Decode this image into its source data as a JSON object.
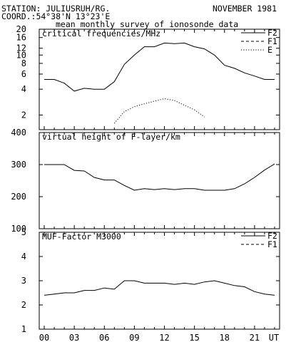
{
  "header": {
    "station": "STATION: JULIUSRUH/RG.",
    "month": "NOVEMBER 1981",
    "coords": "COORD.:54°38'N 13°23'E",
    "subtitle": "mean monthly survey of ionosonde data"
  },
  "chart_data": [
    {
      "type": "line",
      "title": "critical frequencies/MHz",
      "scale": "log",
      "ylim": [
        1.35,
        20
      ],
      "yticks": [
        2,
        4,
        6,
        8,
        10,
        12,
        16,
        20
      ],
      "x_range": [
        0,
        24
      ],
      "legend_position": "top-right",
      "series": [
        {
          "name": "F2",
          "style": "solid",
          "x": [
            0,
            1,
            2,
            3,
            4,
            5,
            6,
            7,
            8,
            9,
            10,
            11,
            12,
            13,
            14,
            15,
            16,
            17,
            18,
            19,
            20,
            21,
            22,
            23
          ],
          "y": [
            5.2,
            5.2,
            4.7,
            3.8,
            4.1,
            4.0,
            4.0,
            4.9,
            7.8,
            10.0,
            12.5,
            12.5,
            13.8,
            13.6,
            13.8,
            12.5,
            11.8,
            10.0,
            7.6,
            7.0,
            6.2,
            5.7,
            5.2,
            5.2
          ]
        },
        {
          "name": "F1",
          "style": "dashed",
          "x": [],
          "y": []
        },
        {
          "name": "E",
          "style": "dotted",
          "x": [
            7,
            8,
            9,
            10,
            11,
            12,
            13,
            14,
            15,
            16
          ],
          "y": [
            1.6,
            2.2,
            2.5,
            2.7,
            2.9,
            3.1,
            2.95,
            2.6,
            2.3,
            1.9
          ]
        }
      ]
    },
    {
      "type": "line",
      "title": "virtual height of F-layer/km",
      "scale": "linear",
      "ylim": [
        100,
        400
      ],
      "yticks": [
        100,
        200,
        300,
        400
      ],
      "x_range": [
        0,
        24
      ],
      "series": [
        {
          "style": "solid",
          "x": [
            0,
            1,
            2,
            3,
            4,
            5,
            6,
            7,
            8,
            9,
            10,
            11,
            12,
            13,
            14,
            15,
            16,
            17,
            18,
            19,
            20,
            21,
            22,
            23
          ],
          "y": [
            300,
            300,
            300,
            282,
            280,
            260,
            252,
            252,
            235,
            220,
            225,
            222,
            225,
            222,
            225,
            225,
            220,
            220,
            220,
            225,
            240,
            260,
            283,
            302
          ]
        }
      ]
    },
    {
      "type": "line",
      "title": "MUF-Factor M3000",
      "scale": "linear",
      "ylim": [
        1,
        5
      ],
      "yticks": [
        1,
        2,
        3,
        4,
        5
      ],
      "x_range": [
        0,
        24
      ],
      "legend_position": "top-right",
      "xticks": [
        "00",
        "03",
        "06",
        "09",
        "12",
        "15",
        "18",
        "21",
        "UT"
      ],
      "series": [
        {
          "name": "F2",
          "style": "solid",
          "x": [
            0,
            1,
            2,
            3,
            4,
            5,
            6,
            7,
            8,
            9,
            10,
            11,
            12,
            13,
            14,
            15,
            16,
            17,
            18,
            19,
            20,
            21,
            22,
            23
          ],
          "y": [
            2.4,
            2.45,
            2.5,
            2.5,
            2.6,
            2.6,
            2.7,
            2.65,
            3.0,
            3.0,
            2.9,
            2.9,
            2.9,
            2.85,
            2.9,
            2.85,
            2.95,
            3.0,
            2.9,
            2.8,
            2.75,
            2.55,
            2.45,
            2.4
          ]
        },
        {
          "name": "F1",
          "style": "dashed",
          "x": [],
          "y": []
        }
      ]
    }
  ]
}
